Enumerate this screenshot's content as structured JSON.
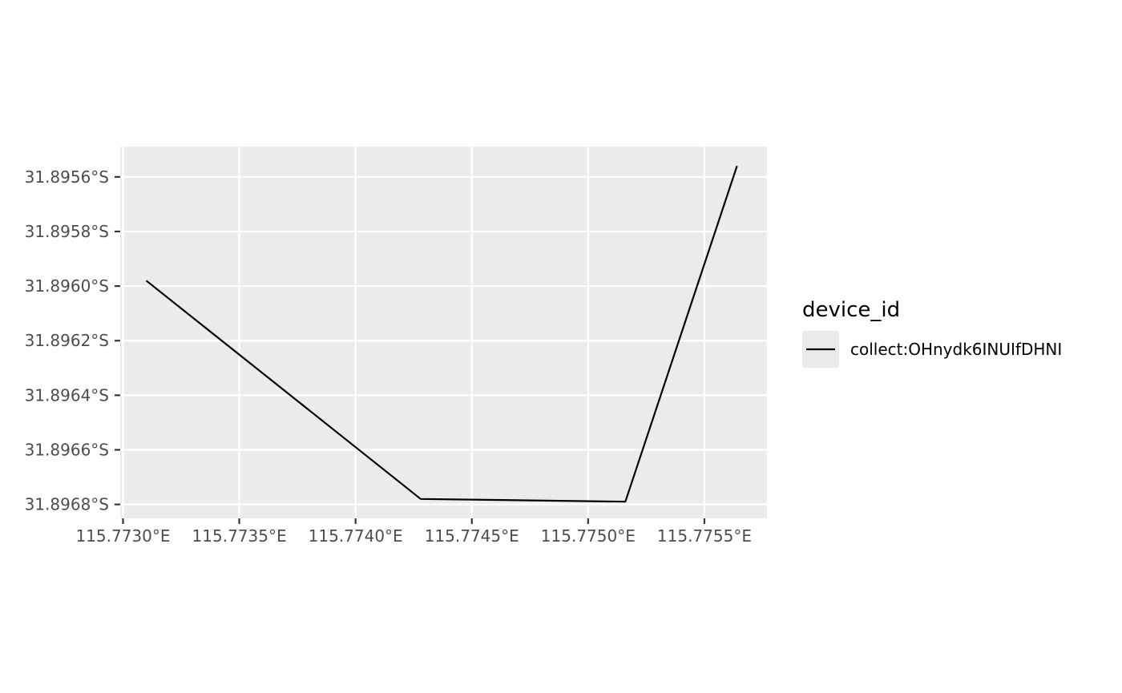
{
  "chart_data": {
    "type": "line",
    "x": [
      115.7731,
      115.77428,
      115.77516,
      115.77564
    ],
    "series": [
      {
        "name": "collect:OHnydk6INUIfDHNI",
        "color": "#000000",
        "lon": [
          115.7731,
          115.77428,
          115.77516,
          115.77564
        ],
        "lat": [
          -31.89598,
          -31.89678,
          -31.89679,
          -31.89556
        ]
      }
    ],
    "x_ticks": [
      {
        "value": 115.773,
        "label": "115.7730°E"
      },
      {
        "value": 115.7735,
        "label": "115.7735°E"
      },
      {
        "value": 115.774,
        "label": "115.7740°E"
      },
      {
        "value": 115.7745,
        "label": "115.7745°E"
      },
      {
        "value": 115.775,
        "label": "115.7750°E"
      },
      {
        "value": 115.7755,
        "label": "115.7755°E"
      }
    ],
    "y_ticks": [
      {
        "value": -31.8956,
        "label": "31.8956°S"
      },
      {
        "value": -31.8958,
        "label": "31.8958°S"
      },
      {
        "value": -31.896,
        "label": "31.8960°S"
      },
      {
        "value": -31.8962,
        "label": "31.8962°S"
      },
      {
        "value": -31.8964,
        "label": "31.8964°S"
      },
      {
        "value": -31.8966,
        "label": "31.8966°S"
      },
      {
        "value": -31.8968,
        "label": "31.8968°S"
      }
    ],
    "xlim": [
      115.772988,
      115.775769
    ],
    "ylim": [
      -31.896851,
      -31.895489
    ],
    "grid": true,
    "panel_background": "#ebebeb",
    "grid_color": "#ffffff",
    "legend": {
      "title": "device_id",
      "position": "right",
      "entries": [
        "collect:OHnydk6INUIfDHNI"
      ]
    }
  }
}
